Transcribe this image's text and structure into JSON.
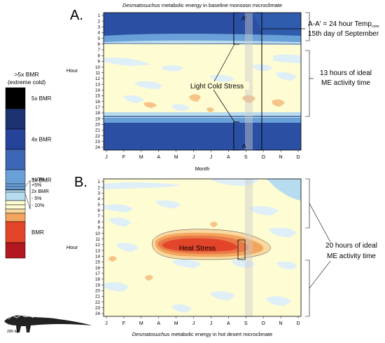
{
  "legend": {
    "title": [
      ">5x BMR",
      "(extreme cold)"
    ],
    "items": [
      {
        "label": "5x BMR",
        "color": "#000000"
      },
      {
        "label": "",
        "color": "#1c3270"
      },
      {
        "label": "4x BMR",
        "color": "#26439a"
      },
      {
        "label": "",
        "color": "#3d67b4"
      },
      {
        "label": "3x BMR",
        "color": "#6aa0d8"
      },
      {
        "label": "",
        "color": "#b8dcef"
      },
      {
        "label": "",
        "color": "#fefcd2"
      },
      {
        "label": "",
        "color": "#fefcd2"
      },
      {
        "label": "",
        "color": "#f9d9a0"
      },
      {
        "label": "",
        "color": "#f3a55e"
      },
      {
        "label": "BMR",
        "color": "#e3452a"
      },
      {
        "label": "",
        "color": "#b31820"
      },
      {
        "label": "",
        "color": "#7a0a14"
      }
    ],
    "sub_labels": [
      "+10%",
      "+5%",
      "2x BMR",
      "- 5%",
      "- 10%"
    ],
    "specimen_label": "280 kg"
  },
  "chart_data": [
    {
      "type": "heatmap",
      "panel_label": "A.",
      "title_italic": "Desmatosuchus",
      "title_rest": " metabolic energy in baseline monsoon microclimate",
      "xlabel": "Month",
      "ylabel": "Hour",
      "x": [
        "J",
        "F",
        "M",
        "A",
        "M",
        "J",
        "J",
        "A",
        "S",
        "O",
        "N",
        "D"
      ],
      "y": [
        "1",
        "2",
        "3",
        "4",
        "5",
        "6",
        "7",
        "8",
        "9",
        "10",
        "11",
        "12",
        "13",
        "14",
        "15",
        "16",
        "17",
        "18",
        "19",
        "20",
        "21",
        "22",
        "23",
        "24"
      ],
      "zones": [
        {
          "hours": [
            1,
            6.5
          ],
          "level": "4x BMR"
        },
        {
          "hours": [
            6.5,
            7.5
          ],
          "level": "3x BMR"
        },
        {
          "hours": [
            7.5,
            17.5
          ],
          "level": "2x BMR"
        },
        {
          "hours": [
            17.5,
            19
          ],
          "level": "3x BMR"
        },
        {
          "hours": [
            19,
            24
          ],
          "level": "4x BMR"
        }
      ],
      "annotations": {
        "marker_top": "A'",
        "marker_bottom": "A",
        "center_label": "Light Cold Stress",
        "right_top_1": "A-A' = 24 hour Temp",
        "right_top_sub": "core",
        "right_top_2": "15th day of September",
        "right_mid_1": "13 hours of ideal",
        "right_mid_2": "ME activity time"
      }
    },
    {
      "type": "heatmap",
      "panel_label": "B.",
      "title_italic": "Desmatosuchus",
      "title_rest": " metabolic energy in hot desert microclimate",
      "ylabel": "Hour",
      "x": [
        "J",
        "F",
        "M",
        "A",
        "M",
        "J",
        "J",
        "A",
        "S",
        "O",
        "N",
        "D"
      ],
      "y": [
        "1",
        "2",
        "3",
        "4",
        "5",
        "6",
        "7",
        "8",
        "9",
        "10",
        "11",
        "12",
        "13",
        "14",
        "15",
        "16",
        "17",
        "18",
        "19",
        "20",
        "21",
        "22",
        "23",
        "24"
      ],
      "zones": [
        {
          "hours": [
            1,
            24
          ],
          "level": "2x BMR"
        },
        {
          "hours": [
            11,
            14.5
          ],
          "months": [
            "M",
            "S"
          ],
          "level": "BMR"
        }
      ],
      "annotations": {
        "center_label": "Heat Stress",
        "right_1": "20 hours of ideal",
        "right_2": "ME activity time"
      }
    }
  ]
}
